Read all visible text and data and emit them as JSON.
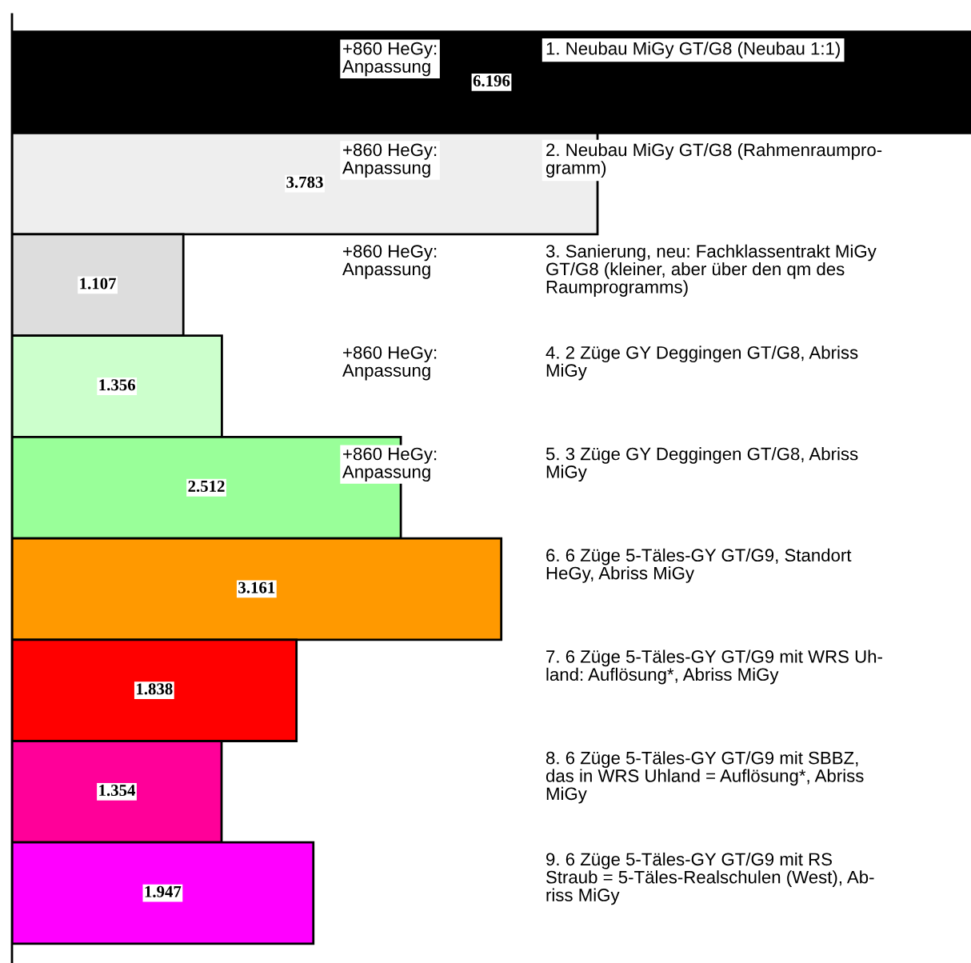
{
  "chart_data": {
    "type": "bar",
    "orientation": "horizontal",
    "data_labels": true,
    "tick_labels": false,
    "categories": [
      "1. Neubau MiGy GT/G8 (Neubau 1:1)",
      "2. Neubau MiGy GT/G8 (Rahmenraumpro-\ngramm)",
      "3. Sanierung, neu: Fachklassentrakt MiGy\nGT/G8 (kleiner, aber über den qm des\nRaumprogramms)",
      "4. 2 Züge GY Deggingen GT/G8, Abriss\nMiGy",
      "5. 3 Züge GY Deggingen GT/G8, Abriss\nMiGy",
      "6. 6 Züge 5-Täles-GY GT/G9, Standort\nHeGy, Abriss MiGy",
      "7. 6 Züge 5-Täles-GY GT/G9 mit WRS Uh-\nland: Auflösung*, Abriss MiGy",
      "8. 6 Züge 5-Täles-GY GT/G9 mit SBBZ,\ndas in WRS Uhland = Auflösung*, Abriss\nMiGy",
      "9. 6 Züge 5-Täles-GY GT/G9 mit RS\nStraub = 5-Täles-Realschulen (West), Ab-\nriss MiGy"
    ],
    "values": [
      6.196,
      3.783,
      1.107,
      1.356,
      2.512,
      3.161,
      1.838,
      1.354,
      1.947
    ],
    "colors": [
      "#000000",
      "#eeeeee",
      "#dddddd",
      "#ccffcc",
      "#99ff99",
      "#ff9900",
      "#ff0000",
      "#ff0099",
      "#ff00ff"
    ],
    "annotations": [
      "+860 HeGy:\nAnpassung",
      "+860 HeGy:\nAnpassung",
      "+860 HeGy:\nAnpassung",
      "+860 HeGy:\nAnpassung",
      "+860 HeGy:\nAnpassung"
    ]
  }
}
